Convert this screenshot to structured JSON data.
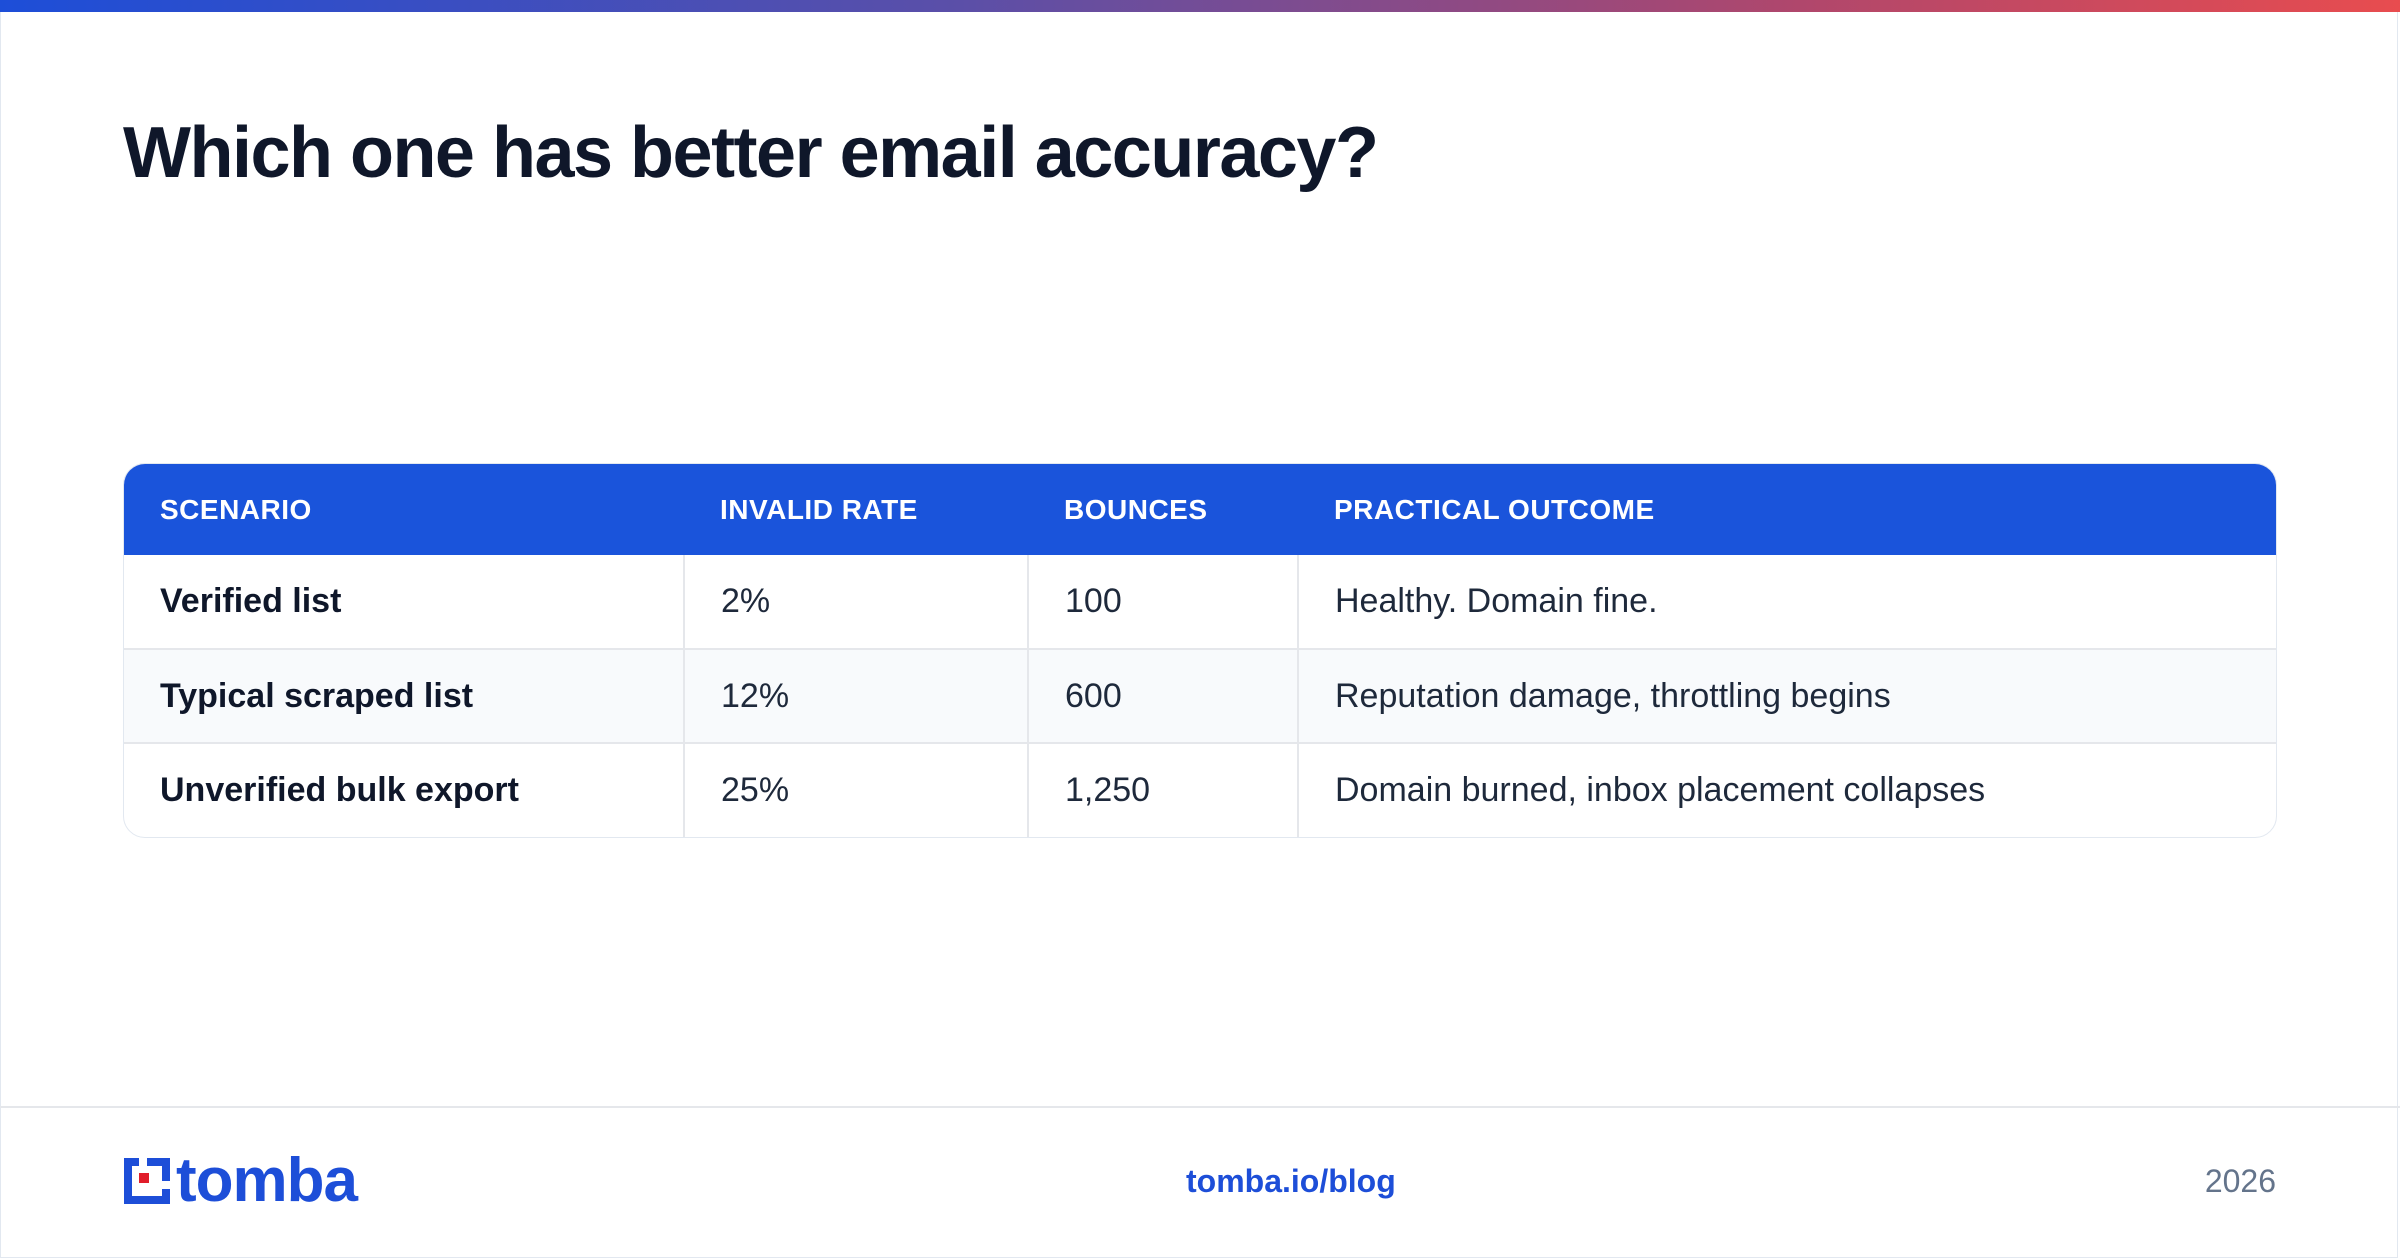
{
  "title": "Which one has better email accuracy?",
  "table": {
    "headers": [
      "SCENARIO",
      "INVALID RATE",
      "BOUNCES",
      "PRACTICAL OUTCOME"
    ],
    "rows": [
      [
        "Verified list",
        "2%",
        "100",
        "Healthy. Domain fine."
      ],
      [
        "Typical scraped list",
        "12%",
        "600",
        "Reputation damage, throttling begins"
      ],
      [
        "Unverified bulk export",
        "25%",
        "1,250",
        "Domain burned, inbox placement collapses"
      ]
    ]
  },
  "footer": {
    "logo_text": "tomba",
    "link": "tomba.io/blog",
    "year": "2026"
  },
  "colors": {
    "accent": "#1a54db",
    "logo_red": "#e11d2a",
    "gradient_start": "#1d4ed8",
    "gradient_end": "#e84c4f"
  }
}
